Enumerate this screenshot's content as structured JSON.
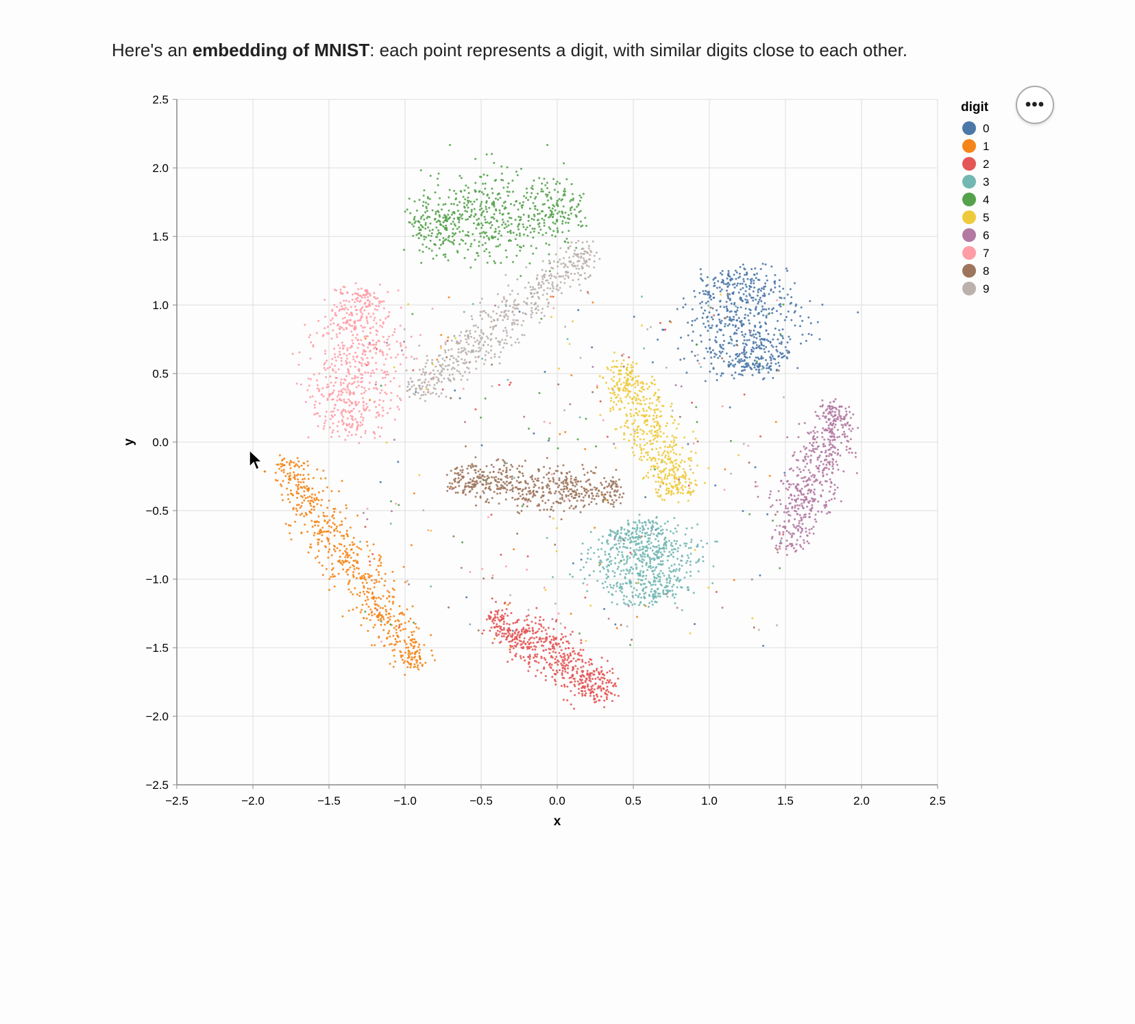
{
  "intro": {
    "prefix": "Here's an ",
    "bold": "embedding of MNIST",
    "suffix": ": each point represents a digit, with similar digits close to each other."
  },
  "actions_button": {
    "label": "•••",
    "icon": "ellipsis-icon"
  },
  "chart_data": {
    "type": "scatter",
    "xlabel": "x",
    "ylabel": "y",
    "xlim": [
      -2.5,
      2.5
    ],
    "ylim": [
      -2.5,
      2.5
    ],
    "xticks": [
      "−2.5",
      "−2.0",
      "−1.5",
      "−1.0",
      "−0.5",
      "0.0",
      "0.5",
      "1.0",
      "1.5",
      "2.0",
      "2.5"
    ],
    "yticks": [
      "2.5",
      "2.0",
      "1.5",
      "1.0",
      "0.5",
      "0.0",
      "−0.5",
      "−1.0",
      "−1.5",
      "−2.0",
      "−2.5"
    ],
    "xtick_values": [
      -2.5,
      -2,
      -1.5,
      -1,
      -0.5,
      0,
      0.5,
      1,
      1.5,
      2,
      2.5
    ],
    "ytick_values": [
      2.5,
      2,
      1.5,
      1,
      0.5,
      0,
      -0.5,
      -1,
      -1.5,
      -2,
      -2.5
    ],
    "grid": true,
    "legend": {
      "title": "digit",
      "position": "right"
    },
    "series": [
      {
        "name": "0",
        "color": "#4c78a8",
        "from": [
          1.15,
          1.25
        ],
        "to": [
          1.3,
          0.5
        ],
        "spread": 0.16,
        "count": 650
      },
      {
        "name": "1",
        "color": "#f58518",
        "from": [
          -1.8,
          -0.15
        ],
        "to": [
          -0.92,
          -1.63
        ],
        "spread": 0.07,
        "count": 650
      },
      {
        "name": "2",
        "color": "#e45756",
        "from": [
          -0.43,
          -1.28
        ],
        "to": [
          0.34,
          -1.82
        ],
        "spread": 0.07,
        "count": 600
      },
      {
        "name": "3",
        "color": "#72b7b2",
        "from": [
          0.5,
          -0.6
        ],
        "to": [
          0.65,
          -1.15
        ],
        "spread": 0.15,
        "count": 650
      },
      {
        "name": "4",
        "color": "#54a24b",
        "from": [
          -0.95,
          1.58
        ],
        "to": [
          0.15,
          1.72
        ],
        "spread": 0.13,
        "count": 650
      },
      {
        "name": "5",
        "color": "#eeca3b",
        "from": [
          0.4,
          0.57
        ],
        "to": [
          0.82,
          -0.4
        ],
        "spread": 0.07,
        "count": 550
      },
      {
        "name": "6",
        "color": "#b279a2",
        "from": [
          1.86,
          0.27
        ],
        "to": [
          1.5,
          -0.78
        ],
        "spread": 0.07,
        "count": 550
      },
      {
        "name": "7",
        "color": "#ff9da6",
        "from": [
          -1.28,
          1.1
        ],
        "to": [
          -1.38,
          0.05
        ],
        "spread": 0.13,
        "count": 650
      },
      {
        "name": "8",
        "color": "#9d755d",
        "from": [
          -0.7,
          -0.27
        ],
        "to": [
          0.4,
          -0.37
        ],
        "spread": 0.06,
        "count": 550
      },
      {
        "name": "9",
        "color": "#bab0ac",
        "from": [
          -0.95,
          0.35
        ],
        "to": [
          0.24,
          1.42
        ],
        "spread": 0.06,
        "count": 550
      }
    ]
  }
}
